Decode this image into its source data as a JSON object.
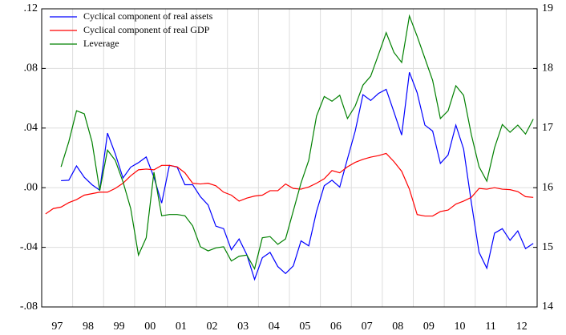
{
  "chart_data": {
    "type": "line",
    "x": [
      1997.125,
      1997.375,
      1997.625,
      1997.875,
      1998.125,
      1998.375,
      1998.625,
      1998.875,
      1999.125,
      1999.375,
      1999.625,
      1999.875,
      2000.125,
      2000.375,
      2000.625,
      2000.875,
      2001.125,
      2001.375,
      2001.625,
      2001.875,
      2002.125,
      2002.375,
      2002.625,
      2002.875,
      2003.125,
      2003.375,
      2003.625,
      2003.875,
      2004.125,
      2004.375,
      2004.625,
      2004.875,
      2005.125,
      2005.375,
      2005.625,
      2005.875,
      2006.125,
      2006.375,
      2006.625,
      2006.875,
      2007.125,
      2007.375,
      2007.625,
      2007.875,
      2008.125,
      2008.375,
      2008.625,
      2008.875,
      2009.125,
      2009.375,
      2009.625,
      2009.875,
      2010.125,
      2010.375,
      2010.625,
      2010.875,
      2011.125,
      2011.375,
      2011.625,
      2011.875,
      2012.125,
      2012.375,
      2012.625,
      2012.875
    ],
    "series": [
      {
        "name": "Cyclical component of real assets",
        "color": "#0000ff",
        "axis": "y",
        "values": [
          null,
          null,
          0.0047,
          0.005,
          0.0146,
          0.007,
          0.002,
          -0.0017,
          0.0366,
          0.0228,
          0.0065,
          0.0138,
          0.0168,
          0.0206,
          0.007,
          -0.0103,
          0.015,
          0.0138,
          0.002,
          0.002,
          -0.006,
          -0.0116,
          -0.0258,
          -0.0275,
          -0.0417,
          -0.0344,
          -0.045,
          -0.0615,
          -0.047,
          -0.0434,
          -0.0529,
          -0.0576,
          -0.0525,
          -0.0357,
          -0.039,
          -0.016,
          0.0013,
          0.005,
          0.0004,
          0.0194,
          0.038,
          0.0624,
          0.0585,
          0.0632,
          0.066,
          0.0508,
          0.0353,
          0.0774,
          0.0637,
          0.042,
          0.038,
          0.0163,
          0.022,
          0.042,
          0.026,
          -0.0099,
          -0.0434,
          -0.054,
          -0.0305,
          -0.0275,
          -0.0353,
          -0.029,
          -0.0409,
          -0.0374
        ]
      },
      {
        "name": "Cyclical component of real GDP",
        "color": "#ff0000",
        "axis": "y",
        "values": [
          -0.0176,
          -0.014,
          -0.013,
          -0.01,
          -0.008,
          -0.005,
          -0.004,
          -0.003,
          -0.003,
          -0.0005,
          0.003,
          0.008,
          0.012,
          0.0125,
          0.012,
          0.015,
          0.015,
          0.014,
          0.01,
          0.003,
          0.0025,
          0.003,
          0.0013,
          -0.003,
          -0.005,
          -0.009,
          -0.007,
          -0.0056,
          -0.005,
          -0.002,
          -0.002,
          0.0025,
          -0.0005,
          -0.001,
          0.0005,
          0.003,
          0.006,
          0.0115,
          0.01,
          0.014,
          0.017,
          0.019,
          0.0205,
          0.0215,
          0.023,
          0.0175,
          0.011,
          -0.001,
          -0.018,
          -0.019,
          -0.019,
          -0.016,
          -0.015,
          -0.011,
          -0.009,
          -0.0065,
          -0.0005,
          -0.001,
          0,
          -0.001,
          -0.0013,
          -0.0026,
          -0.006,
          -0.0065
        ]
      },
      {
        "name": "Leverage",
        "color": "#008000",
        "axis": "y2",
        "values": [
          null,
          null,
          16.35,
          16.77,
          17.29,
          17.24,
          16.77,
          15.95,
          16.63,
          16.46,
          16.1,
          15.65,
          14.87,
          15.16,
          16.26,
          15.53,
          15.55,
          15.55,
          15.53,
          15.36,
          15.01,
          14.94,
          14.99,
          15.01,
          14.77,
          14.85,
          14.87,
          14.64,
          15.16,
          15.18,
          15.05,
          15.14,
          15.61,
          16.08,
          16.46,
          17.2,
          17.53,
          17.45,
          17.55,
          17.16,
          17.37,
          17.72,
          17.87,
          18.23,
          18.6,
          18.27,
          18.1,
          18.88,
          18.54,
          18.17,
          17.8,
          17.16,
          17.29,
          17.71,
          17.55,
          16.89,
          16.35,
          16.11,
          16.67,
          17.06,
          16.93,
          17.05,
          16.9,
          17.15
        ]
      }
    ],
    "xlim": [
      1997,
      2013
    ],
    "xticks": [
      {
        "value": 1997.5,
        "label": "97"
      },
      {
        "value": 1998.5,
        "label": "98"
      },
      {
        "value": 1999.5,
        "label": "99"
      },
      {
        "value": 2000.5,
        "label": "00"
      },
      {
        "value": 2001.5,
        "label": "01"
      },
      {
        "value": 2002.5,
        "label": "02"
      },
      {
        "value": 2003.5,
        "label": "03"
      },
      {
        "value": 2004.5,
        "label": "04"
      },
      {
        "value": 2005.5,
        "label": "05"
      },
      {
        "value": 2006.5,
        "label": "06"
      },
      {
        "value": 2007.5,
        "label": "07"
      },
      {
        "value": 2008.5,
        "label": "08"
      },
      {
        "value": 2009.5,
        "label": "09"
      },
      {
        "value": 2010.5,
        "label": "10"
      },
      {
        "value": 2011.5,
        "label": "11"
      },
      {
        "value": 2012.5,
        "label": "12"
      }
    ],
    "xgrid": [
      1998,
      1999,
      2000,
      2001,
      2002,
      2003,
      2004,
      2005,
      2006,
      2007,
      2008,
      2009,
      2010,
      2011,
      2012
    ],
    "ylim": [
      -0.08,
      0.12
    ],
    "yticks": [
      {
        "value": -0.08,
        "label": "-.08"
      },
      {
        "value": -0.04,
        "label": "-.04"
      },
      {
        "value": 0,
        "label": ".00"
      },
      {
        "value": 0.04,
        "label": ".04"
      },
      {
        "value": 0.08,
        "label": ".08"
      },
      {
        "value": 0.12,
        "label": ".12"
      }
    ],
    "y2lim": [
      14,
      19
    ],
    "y2ticks": [
      14,
      15,
      16,
      17,
      18,
      19
    ],
    "grid": true,
    "legend": "top-left"
  }
}
